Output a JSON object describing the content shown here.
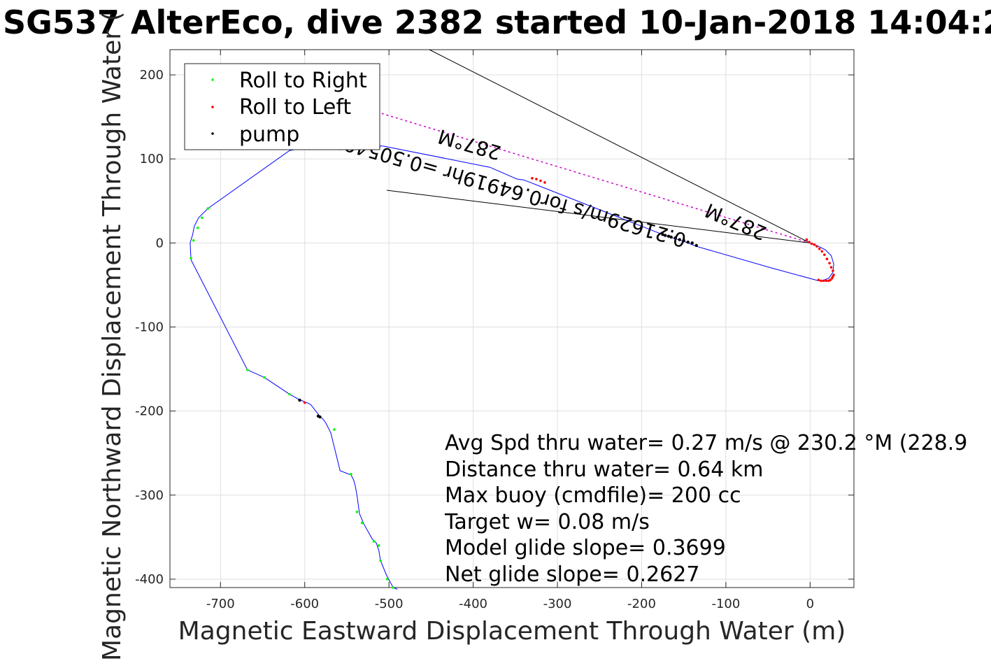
{
  "chart_data": {
    "type": "line",
    "title": "SG537 AlterEco, dive 2382 started 10-Jan-2018 14:04:2",
    "xlabel": "Magnetic Eastward Displacement Through Water (m)",
    "ylabel": "Magnetic Northward Displacement Through Water (",
    "xlim": [
      -760,
      52
    ],
    "ylim": [
      -410,
      230
    ],
    "xticks": [
      -700,
      -600,
      -500,
      -400,
      -300,
      -200,
      -100,
      0
    ],
    "yticks": [
      -400,
      -300,
      -200,
      -100,
      0,
      100,
      200
    ],
    "xtick_labels": [
      "-700",
      "-600",
      "-500",
      "-400",
      "-300",
      "-200",
      "-100",
      "0"
    ],
    "ytick_labels": [
      "-400",
      "-300",
      "-200",
      "-100",
      "0",
      "100",
      "200"
    ],
    "grid": true,
    "legend_placement": "top-left",
    "legend": [
      {
        "label": "Roll to Right",
        "color": "#00ff00"
      },
      {
        "label": "Roll to Left",
        "color": "#ff0000"
      },
      {
        "label": "pump",
        "color": "#000000"
      }
    ],
    "colors": {
      "track": "#0000ff",
      "grid": "#dfdfdf",
      "axis": "#262626",
      "arrow": "#000000",
      "current": "#cc00cc"
    },
    "track": {
      "name": "dive track",
      "x": [
        0,
        10,
        18,
        25,
        28,
        27,
        22,
        14,
        10,
        -45,
        -135,
        -150,
        -170,
        -175,
        -340,
        -348,
        -380,
        -505,
        -555,
        -618,
        -715,
        -726,
        -731,
        -733,
        -736,
        -735,
        -668,
        -648,
        -618,
        -607,
        -600,
        -593,
        -583,
        -578,
        -575,
        -572,
        -569,
        -558,
        -545,
        -542,
        -540,
        -538,
        -535,
        -530,
        -520,
        -515,
        -512,
        -510,
        -503,
        -495,
        -490
      ],
      "y": [
        0,
        -4,
        -8,
        -15,
        -25,
        -35,
        -42,
        -45,
        -45,
        -30,
        -4,
        2,
        8,
        10,
        75,
        76,
        90,
        115,
        122,
        110,
        41,
        30,
        20,
        10,
        0,
        -20,
        -151,
        -160,
        -180,
        -186,
        -189,
        -192,
        -205,
        -210,
        -214,
        -220,
        -226,
        -271,
        -276,
        -282,
        -289,
        -300,
        -322,
        -334,
        -352,
        -357,
        -366,
        -378,
        -395,
        -410,
        -412
      ]
    },
    "markers": {
      "roll_left": {
        "x": [
          -4,
          -1,
          2,
          5,
          8,
          11,
          14,
          17,
          20,
          23,
          25,
          27,
          28,
          27,
          26,
          24,
          22,
          19,
          16,
          13,
          10,
          -330,
          -325,
          -320,
          -315,
          -600
        ],
        "y": [
          4,
          1,
          -1,
          -2,
          -4,
          -7,
          -10,
          -14,
          -19,
          -24,
          -29,
          -33,
          -38,
          -40,
          -42,
          -44,
          -45,
          -45,
          -45,
          -45,
          -44,
          77,
          76,
          74,
          72,
          -190
        ]
      },
      "roll_right": {
        "x": [
          -735,
          -732,
          -727,
          -722,
          -715,
          -668,
          -648,
          -618,
          -565,
          -545,
          -538,
          -532,
          -518,
          -512,
          -510,
          -502,
          -495
        ],
        "y": [
          -18,
          3,
          18,
          30,
          41,
          -151,
          -160,
          -180,
          -222,
          -275,
          -320,
          -333,
          -355,
          -360,
          -378,
          -400,
          -410
        ]
      },
      "pump": {
        "x": [
          -175,
          -172,
          -168,
          -165,
          -160,
          -155,
          -150,
          -145,
          -140,
          -135,
          -606,
          -584,
          -582
        ],
        "y": [
          10,
          9,
          8,
          7,
          6,
          4,
          3,
          1,
          0,
          -3,
          -187,
          -206,
          -207
        ]
      }
    },
    "annotations": {
      "lines": [
        "Avg Spd thru water=  0.27 m/s @ 230.2 °M (228.9",
        "Distance thru water=  0.64 km",
        "Max buoy (cmdfile)= 200 cc",
        "Target w= 0.08 m/s",
        "Model glide slope= 0.3699",
        "Net glide slope= 0.2627"
      ],
      "current_label_1": "0.21629m/s for0.64919hr =0.50549k",
      "current_label_1_sub": "287°M",
      "current_label_2": "287°M"
    }
  }
}
